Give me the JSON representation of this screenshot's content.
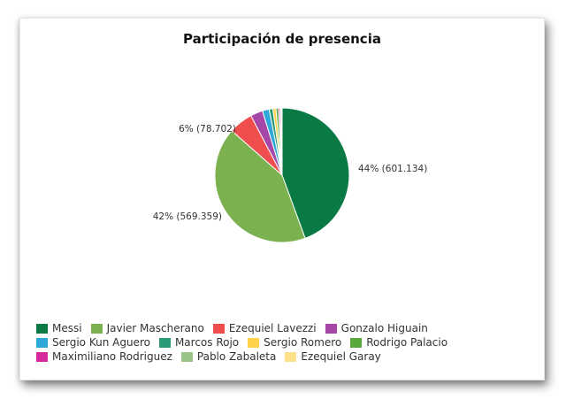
{
  "chart_data": {
    "type": "pie",
    "title": "Participación de presencia",
    "slices": [
      {
        "name": "Messi",
        "value": 601134,
        "color": "#0a7a45",
        "label": "44% (601.134)"
      },
      {
        "name": "Javier Mascherano",
        "value": 569359,
        "color": "#7cb150",
        "label": "42% (569.359)"
      },
      {
        "name": "Ezequiel Lavezzi",
        "value": 78702,
        "color": "#f04e4e",
        "label": "6% (78.702)"
      },
      {
        "name": "Gonzalo Higuain",
        "value": 40000,
        "color": "#a646a6",
        "label": ""
      },
      {
        "name": "Sergio Kun Aguero",
        "value": 22000,
        "color": "#2ea8d8",
        "label": ""
      },
      {
        "name": "Marcos Rojo",
        "value": 12000,
        "color": "#2a9a78",
        "label": ""
      },
      {
        "name": "Sergio Romero",
        "value": 10000,
        "color": "#ffd24a",
        "label": ""
      },
      {
        "name": "Rodrigo Palacio",
        "value": 8000,
        "color": "#59a83a",
        "label": ""
      },
      {
        "name": "Maximiliano Rodriguez",
        "value": 5000,
        "color": "#d62a9c",
        "label": ""
      },
      {
        "name": "Pablo Zabaleta",
        "value": 4000,
        "color": "#98c488",
        "label": ""
      },
      {
        "name": "Ezequiel Garay",
        "value": 3000,
        "color": "#ffe08a",
        "label": ""
      }
    ],
    "legend_position": "bottom"
  }
}
